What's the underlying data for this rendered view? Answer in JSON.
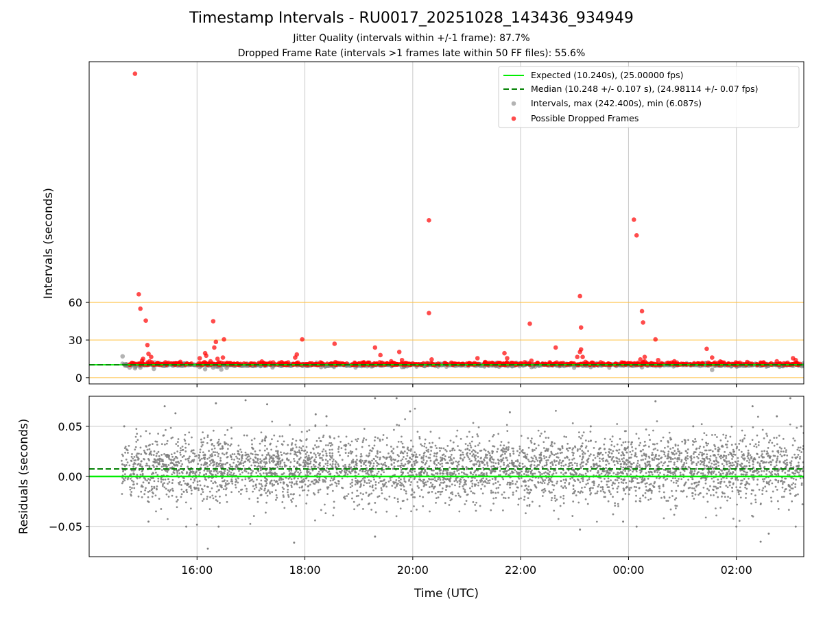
{
  "figure": {
    "title": "Timestamp Intervals - RU0017_20251028_143436_934949",
    "subtitle_jitter": "Jitter Quality (intervals within +/-1 frame): 87.7%",
    "subtitle_dropped": "Dropped Frame Rate (intervals >1 frames late within 50 FF files): 55.6%"
  },
  "colors": {
    "expected": "#00ee00",
    "median": "#008000",
    "intervals": "#808080",
    "dropped": "#ff0000",
    "threshold": "#ffc040",
    "grid": "#c8c8c8"
  },
  "chart_data": [
    {
      "type": "scatter",
      "title": "Intervals",
      "xlabel": "",
      "ylabel": "Intervals (seconds)",
      "x_range_hours": [
        14.0,
        27.25
      ],
      "x_ticks_hours": [
        16,
        18,
        20,
        22,
        24,
        26
      ],
      "x_tick_labels": [
        "16:00",
        "18:00",
        "20:00",
        "22:00",
        "00:00",
        "02:00"
      ],
      "ylim": [
        -5,
        252
      ],
      "y_ticks": [
        0,
        30,
        60
      ],
      "y_tick_labels": [
        "0",
        "30",
        "60"
      ],
      "threshold_lines": [
        0,
        30,
        60
      ],
      "expected_interval": 10.24,
      "median_interval": 10.248,
      "legend_position": "top-right",
      "legend": [
        "Expected (10.240s), (25.00000 fps)",
        "Median (10.248 +/- 0.107 s), (24.98114 +/- 0.07 fps)",
        "Intervals, max (242.400s), min (6.087s)",
        "Possible Dropped Frames"
      ],
      "interval_outliers": [
        [
          14.62,
          17.0
        ],
        [
          14.75,
          8.0
        ],
        [
          14.85,
          7.5
        ],
        [
          14.95,
          8.0
        ],
        [
          15.2,
          7.0
        ],
        [
          16.05,
          8.5
        ],
        [
          16.15,
          6.8
        ],
        [
          16.3,
          8.0
        ],
        [
          16.45,
          6.5
        ],
        [
          16.55,
          7.8
        ],
        [
          17.4,
          8.2
        ],
        [
          18.3,
          8.5
        ],
        [
          19.8,
          8.5
        ],
        [
          21.6,
          8.8
        ],
        [
          22.2,
          8.5
        ],
        [
          23.3,
          8.5
        ],
        [
          24.25,
          8.3
        ],
        [
          25.55,
          6.2
        ],
        [
          26.8,
          8.8
        ]
      ],
      "dropped_frames": [
        [
          14.85,
          242.4
        ],
        [
          14.92,
          66.5
        ],
        [
          14.95,
          55.0
        ],
        [
          15.05,
          45.5
        ],
        [
          15.08,
          26.0
        ],
        [
          15.1,
          19.0
        ],
        [
          15.15,
          16.5
        ],
        [
          15.0,
          15.0
        ],
        [
          14.98,
          13.5
        ],
        [
          15.12,
          13.0
        ],
        [
          16.05,
          15.5
        ],
        [
          16.15,
          19.5
        ],
        [
          16.17,
          17.5
        ],
        [
          16.3,
          45.0
        ],
        [
          16.35,
          28.5
        ],
        [
          16.32,
          24.0
        ],
        [
          16.38,
          15.0
        ],
        [
          16.5,
          30.5
        ],
        [
          16.48,
          16.0
        ],
        [
          16.25,
          13.0
        ],
        [
          17.85,
          18.5
        ],
        [
          17.82,
          16.0
        ],
        [
          17.95,
          30.5
        ],
        [
          18.55,
          27.0
        ],
        [
          19.3,
          24.0
        ],
        [
          19.4,
          18.0
        ],
        [
          19.6,
          13.0
        ],
        [
          19.75,
          20.5
        ],
        [
          19.8,
          14.0
        ],
        [
          20.3,
          125.5
        ],
        [
          20.3,
          51.5
        ],
        [
          20.35,
          14.5
        ],
        [
          21.2,
          15.5
        ],
        [
          21.7,
          19.5
        ],
        [
          21.75,
          15.5
        ],
        [
          22.17,
          43.0
        ],
        [
          22.2,
          13.5
        ],
        [
          22.65,
          24.0
        ],
        [
          23.05,
          16.5
        ],
        [
          23.1,
          20.5
        ],
        [
          23.12,
          22.5
        ],
        [
          23.15,
          16.5
        ],
        [
          23.1,
          65.0
        ],
        [
          23.12,
          40.0
        ],
        [
          24.1,
          126.0
        ],
        [
          24.15,
          113.5
        ],
        [
          24.25,
          53.0
        ],
        [
          24.27,
          44.0
        ],
        [
          24.22,
          14.5
        ],
        [
          24.3,
          16.5
        ],
        [
          24.3,
          13.0
        ],
        [
          24.5,
          30.5
        ],
        [
          24.55,
          14.0
        ],
        [
          24.85,
          13.0
        ],
        [
          25.45,
          23.0
        ],
        [
          25.55,
          16.0
        ],
        [
          25.6,
          12.0
        ],
        [
          26.2,
          12.5
        ],
        [
          26.45,
          12.0
        ],
        [
          26.75,
          13.0
        ],
        [
          27.05,
          15.5
        ],
        [
          27.1,
          14.0
        ]
      ]
    },
    {
      "type": "scatter",
      "title": "Residuals",
      "xlabel": "Time (UTC)",
      "ylabel": "Residuals (seconds)",
      "x_range_hours": [
        14.0,
        27.25
      ],
      "x_ticks_hours": [
        16,
        18,
        20,
        22,
        24,
        26
      ],
      "x_tick_labels": [
        "16:00",
        "18:00",
        "20:00",
        "22:00",
        "00:00",
        "02:00"
      ],
      "ylim": [
        -0.08,
        0.08
      ],
      "y_ticks": [
        0.05,
        0.0,
        -0.05
      ],
      "y_tick_labels": [
        "0.05",
        "0.00",
        "−0.05"
      ],
      "expected_residual": 0.0,
      "median_residual": 0.0075,
      "residual_point_count": 4400,
      "residual_std": 0.016,
      "residual_outliers": [
        [
          14.65,
          0.05
        ],
        [
          15.1,
          -0.045
        ],
        [
          15.4,
          0.07
        ],
        [
          15.6,
          0.063
        ],
        [
          15.8,
          -0.05
        ],
        [
          16.0,
          -0.048
        ],
        [
          16.2,
          -0.072
        ],
        [
          16.35,
          0.073
        ],
        [
          16.4,
          -0.05
        ],
        [
          16.9,
          0.076
        ],
        [
          17.3,
          0.072
        ],
        [
          17.8,
          -0.066
        ],
        [
          18.2,
          0.062
        ],
        [
          18.4,
          0.06
        ],
        [
          19.3,
          0.078
        ],
        [
          19.3,
          -0.06
        ],
        [
          19.7,
          0.078
        ],
        [
          19.95,
          0.065
        ],
        [
          21.8,
          0.064
        ],
        [
          23.1,
          -0.053
        ],
        [
          23.3,
          0.05
        ],
        [
          23.9,
          -0.045
        ],
        [
          24.15,
          -0.05
        ],
        [
          24.5,
          0.075
        ],
        [
          25.2,
          0.05
        ],
        [
          26.0,
          -0.05
        ],
        [
          26.3,
          0.07
        ],
        [
          26.45,
          -0.065
        ],
        [
          26.6,
          -0.057
        ],
        [
          26.75,
          0.06
        ],
        [
          27.0,
          0.078
        ],
        [
          27.1,
          -0.05
        ],
        [
          27.2,
          0.05
        ]
      ]
    }
  ]
}
